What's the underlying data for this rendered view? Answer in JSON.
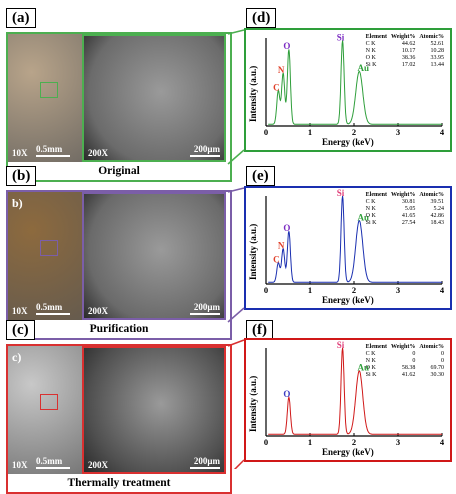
{
  "panels": [
    {
      "label": "(a)",
      "inset_label": "",
      "caption": "Original",
      "optical_mag": "10X",
      "optical_scale": "0.5mm",
      "sem_mag": "200X",
      "sem_scale": "200μm",
      "color": "#4caf50"
    },
    {
      "label": "(b)",
      "inset_label": "b)",
      "caption": "Purification",
      "optical_mag": "10X",
      "optical_scale": "0.5mm",
      "sem_mag": "200X",
      "sem_scale": "200μm",
      "color": "#7b5ea8"
    },
    {
      "label": "(c)",
      "inset_label": "c)",
      "caption": "Thermally treatment",
      "optical_mag": "10X",
      "optical_scale": "0.5mm",
      "sem_mag": "200X",
      "sem_scale": "200μm",
      "color": "#d93030"
    }
  ],
  "spectra": [
    {
      "label": "(d)",
      "color": "#2e9e3a",
      "ylabel": "Intensity (a.u.)",
      "xlabel": "Energy (keV)",
      "xticks": [
        "0",
        "1",
        "2",
        "3",
        "4"
      ],
      "peaks": [
        {
          "name": "C",
          "x": 0.28,
          "h": 0.38,
          "color": "#e0402a"
        },
        {
          "name": "N",
          "x": 0.39,
          "h": 0.58,
          "color": "#e0402a"
        },
        {
          "name": "O",
          "x": 0.52,
          "h": 0.85,
          "color": "#7a2ac2"
        },
        {
          "name": "Si",
          "x": 1.74,
          "h": 0.95,
          "color": "#7a2ac2"
        },
        {
          "name": "Au",
          "x": 2.12,
          "h": 0.6,
          "color": "#2e9e3a"
        }
      ],
      "table": {
        "header": [
          "Element",
          "Weight%",
          "Atomic%"
        ],
        "rows": [
          [
            "C K",
            "44.62",
            "52.61"
          ],
          [
            "N K",
            "10.17",
            "10.28"
          ],
          [
            "O K",
            "38.36",
            "33.95"
          ],
          [
            "Si K",
            "17.02",
            "13.44"
          ]
        ]
      }
    },
    {
      "label": "(e)",
      "color": "#1a2fb0",
      "ylabel": "Intensity (a.u.)",
      "xlabel": "Energy (keV)",
      "xticks": [
        "0",
        "1",
        "2",
        "3",
        "4"
      ],
      "peaks": [
        {
          "name": "C",
          "x": 0.28,
          "h": 0.22,
          "color": "#e0402a"
        },
        {
          "name": "N",
          "x": 0.39,
          "h": 0.38,
          "color": "#e0402a"
        },
        {
          "name": "O",
          "x": 0.52,
          "h": 0.58,
          "color": "#7a2ac2"
        },
        {
          "name": "Si",
          "x": 1.74,
          "h": 0.98,
          "color": "#e0407a"
        },
        {
          "name": "Au",
          "x": 2.12,
          "h": 0.7,
          "color": "#2e9e3a"
        }
      ],
      "table": {
        "header": [
          "Element",
          "Weight%",
          "Atomic%"
        ],
        "rows": [
          [
            "C K",
            "30.81",
            "39.51"
          ],
          [
            "N K",
            "5.05",
            "5.24"
          ],
          [
            "O K",
            "41.65",
            "42.86"
          ],
          [
            "Si K",
            "27.54",
            "18.43"
          ]
        ]
      }
    },
    {
      "label": "(f)",
      "color": "#d01818",
      "ylabel": "Intensity (a.u.)",
      "xlabel": "Energy (keV)",
      "xticks": [
        "0",
        "1",
        "2",
        "3",
        "4"
      ],
      "peaks": [
        {
          "name": "O",
          "x": 0.52,
          "h": 0.42,
          "color": "#3a3ac2"
        },
        {
          "name": "Si",
          "x": 1.74,
          "h": 0.98,
          "color": "#e0407a"
        },
        {
          "name": "Au",
          "x": 2.12,
          "h": 0.72,
          "color": "#2e9e3a"
        }
      ],
      "table": {
        "header": [
          "Element",
          "Weight%",
          "Atomic%"
        ],
        "rows": [
          [
            "C K",
            "0",
            "0"
          ],
          [
            "N K",
            "0",
            "0"
          ],
          [
            "O K",
            "58.38",
            "69.70"
          ],
          [
            "Si K",
            "41.62",
            "30.30"
          ]
        ]
      }
    }
  ]
}
